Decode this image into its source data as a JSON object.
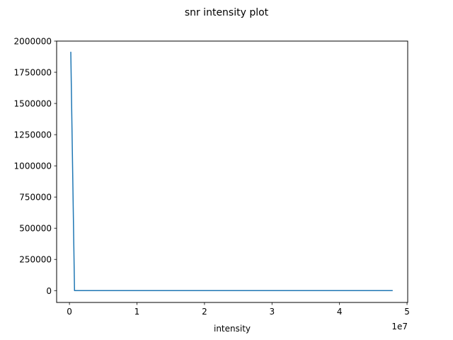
{
  "chart_data": {
    "type": "line",
    "title": "snr intensity plot",
    "xlabel": "intensity",
    "ylabel": "",
    "x_offset_label": "1e7",
    "xlim": [
      -1900000,
      50100000
    ],
    "ylim": [
      -95000,
      2000000
    ],
    "x_ticks": [
      0,
      10000000,
      20000000,
      30000000,
      40000000,
      50000000
    ],
    "x_tick_labels": [
      "0",
      "1",
      "2",
      "3",
      "4",
      "5"
    ],
    "y_ticks": [
      0,
      250000,
      500000,
      750000,
      1000000,
      1250000,
      1500000,
      1750000,
      2000000
    ],
    "y_tick_labels": [
      "0",
      "250000",
      "500000",
      "750000",
      "1000000",
      "1250000",
      "1500000",
      "1750000",
      "2000000"
    ],
    "grid": false,
    "legend": "none",
    "series": [
      {
        "color": "#1f77b4",
        "x": [
          200000,
          750000,
          5000000,
          10000000,
          20000000,
          30000000,
          40000000,
          47800000
        ],
        "y": [
          1910000,
          0,
          0,
          0,
          0,
          0,
          0,
          0
        ]
      }
    ]
  }
}
